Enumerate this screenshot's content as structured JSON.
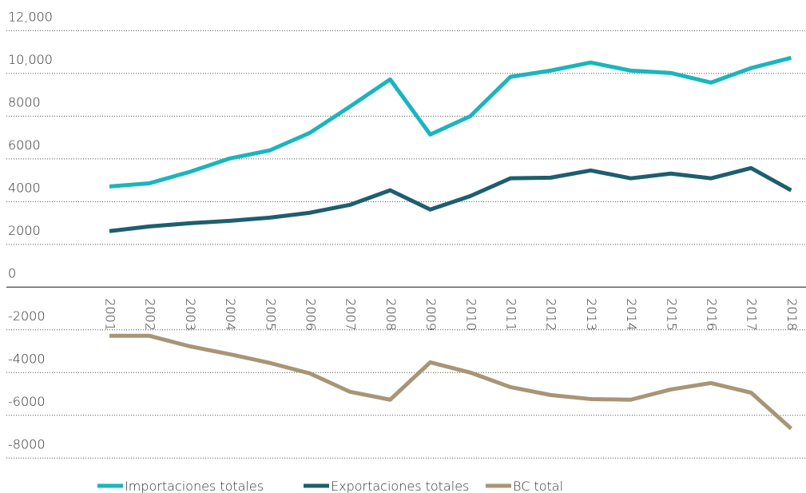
{
  "chart_data": {
    "type": "line",
    "categories": [
      "2001",
      "2002",
      "2003",
      "2004",
      "2005",
      "2006",
      "2007",
      "2008",
      "2009",
      "2010",
      "2011",
      "2012",
      "2013",
      "2014",
      "2015",
      "2016",
      "2017",
      "2018"
    ],
    "series": [
      {
        "name": "Importaciones totales",
        "color": "#1ab5bd",
        "values": [
          4710,
          4860,
          5390,
          6020,
          6400,
          7220,
          8450,
          9720,
          7140,
          8000,
          9840,
          10130,
          10510,
          10130,
          10020,
          9570,
          10250,
          10730
        ]
      },
      {
        "name": "Exportaciones totales",
        "color": "#1e5e6e",
        "values": [
          2620,
          2840,
          2990,
          3100,
          3250,
          3480,
          3850,
          4530,
          3630,
          4260,
          5090,
          5120,
          5460,
          5090,
          5310,
          5090,
          5570,
          4530
        ]
      },
      {
        "name": "BC total",
        "color": "#a89576",
        "values": [
          -2280,
          -2280,
          -2770,
          -3140,
          -3550,
          -4040,
          -4900,
          -5270,
          -3520,
          -4000,
          -4680,
          -5050,
          -5240,
          -5270,
          -4790,
          -4490,
          -4940,
          -6620
        ]
      }
    ],
    "ylim": [
      -9000,
      12500
    ],
    "yticks": [
      -8000,
      -6000,
      -4000,
      -2000,
      0,
      2000,
      4000,
      6000,
      8000,
      {
        "value": 10000,
        "label": "10,000"
      },
      {
        "value": 12000,
        "label": "12,000"
      }
    ],
    "grid": true,
    "legend": "bottom"
  }
}
